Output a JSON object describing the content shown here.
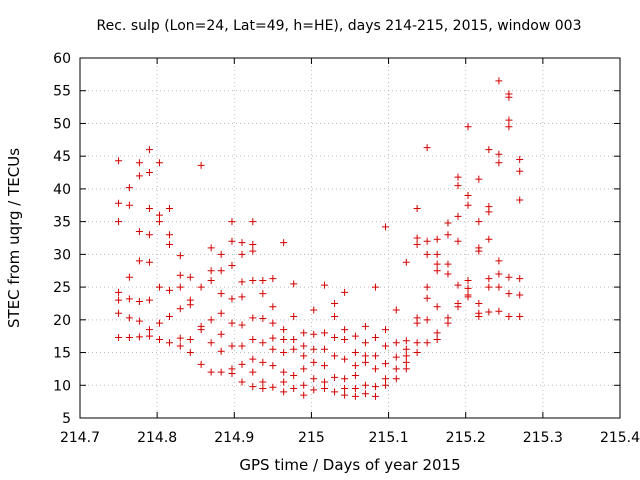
{
  "chart_data": {
    "type": "scatter",
    "title": "Rec. sulp (Lon=24, Lat=49, h=HE), days 214-215, 2015, window 003",
    "xlabel": "GPS time / Days of year 2015",
    "ylabel": "STEC from uqrg / TECUs",
    "xlim": [
      214.7,
      215.4
    ],
    "ylim": [
      5,
      60
    ],
    "xticks": [
      214.7,
      214.8,
      214.9,
      215,
      215.1,
      215.2,
      215.3,
      215.4
    ],
    "xtick_labels": [
      "214.7",
      "214.8",
      "214.9",
      "215",
      "215.1",
      "215.2",
      "215.3",
      "215.4"
    ],
    "yticks": [
      5,
      10,
      15,
      20,
      25,
      30,
      35,
      40,
      45,
      50,
      55,
      60
    ],
    "ytick_labels": [
      "5",
      "10",
      "15",
      "20",
      "25",
      "30",
      "35",
      "40",
      "45",
      "50",
      "55",
      "60"
    ],
    "grid": true,
    "marker_color": "#d40000",
    "series": [
      {
        "points": [
          [
            214.75,
            44.3
          ],
          [
            214.75,
            37.8
          ],
          [
            214.75,
            35
          ],
          [
            214.75,
            24.2
          ],
          [
            214.75,
            23
          ],
          [
            214.75,
            21
          ],
          [
            214.75,
            17.3
          ],
          [
            214.764,
            40.2
          ],
          [
            214.764,
            37.5
          ],
          [
            214.764,
            26.5
          ],
          [
            214.764,
            23.2
          ],
          [
            214.764,
            20.3
          ],
          [
            214.764,
            17.3
          ],
          [
            214.777,
            44
          ],
          [
            214.777,
            42
          ],
          [
            214.777,
            33.5
          ],
          [
            214.777,
            29
          ],
          [
            214.777,
            22.8
          ],
          [
            214.777,
            19.8
          ],
          [
            214.777,
            17.4
          ],
          [
            214.79,
            46
          ],
          [
            214.79,
            42.5
          ],
          [
            214.79,
            37
          ],
          [
            214.79,
            33
          ],
          [
            214.79,
            28.8
          ],
          [
            214.79,
            23
          ],
          [
            214.79,
            18.5
          ],
          [
            214.79,
            17.5
          ],
          [
            214.803,
            44
          ],
          [
            214.803,
            36
          ],
          [
            214.803,
            35
          ],
          [
            214.803,
            25
          ],
          [
            214.803,
            19.5
          ],
          [
            214.803,
            17
          ],
          [
            214.816,
            37
          ],
          [
            214.816,
            33
          ],
          [
            214.816,
            31.5
          ],
          [
            214.816,
            24.5
          ],
          [
            214.816,
            20.5
          ],
          [
            214.816,
            16.5
          ],
          [
            214.83,
            29.8
          ],
          [
            214.83,
            26.8
          ],
          [
            214.83,
            25
          ],
          [
            214.83,
            21.7
          ],
          [
            214.83,
            17.2
          ],
          [
            214.83,
            16
          ],
          [
            214.843,
            26.5
          ],
          [
            214.843,
            23
          ],
          [
            214.843,
            22.3
          ],
          [
            214.843,
            17
          ],
          [
            214.843,
            15
          ],
          [
            214.857,
            43.6
          ],
          [
            214.857,
            25
          ],
          [
            214.857,
            19
          ],
          [
            214.857,
            18.5
          ],
          [
            214.857,
            13.2
          ],
          [
            214.87,
            31
          ],
          [
            214.87,
            27.5
          ],
          [
            214.87,
            26
          ],
          [
            214.87,
            20
          ],
          [
            214.87,
            16.5
          ],
          [
            214.87,
            12
          ],
          [
            214.883,
            30
          ],
          [
            214.883,
            27.5
          ],
          [
            214.883,
            24
          ],
          [
            214.883,
            21
          ],
          [
            214.883,
            17.8
          ],
          [
            214.883,
            15.2
          ],
          [
            214.883,
            12
          ],
          [
            214.897,
            35
          ],
          [
            214.897,
            32
          ],
          [
            214.897,
            28.3
          ],
          [
            214.897,
            23.2
          ],
          [
            214.897,
            19.5
          ],
          [
            214.897,
            16
          ],
          [
            214.897,
            12.5
          ],
          [
            214.897,
            11.8
          ],
          [
            214.91,
            31.8
          ],
          [
            214.91,
            30
          ],
          [
            214.91,
            25.8
          ],
          [
            214.91,
            23.5
          ],
          [
            214.91,
            19.2
          ],
          [
            214.91,
            16
          ],
          [
            214.91,
            13.2
          ],
          [
            214.91,
            10.5
          ],
          [
            214.924,
            35
          ],
          [
            214.924,
            31.5
          ],
          [
            214.924,
            30.5
          ],
          [
            214.924,
            26
          ],
          [
            214.924,
            20.3
          ],
          [
            214.924,
            17
          ],
          [
            214.924,
            14
          ],
          [
            214.924,
            12
          ],
          [
            214.924,
            9.8
          ],
          [
            214.937,
            26
          ],
          [
            214.937,
            24
          ],
          [
            214.937,
            20.2
          ],
          [
            214.937,
            16.5
          ],
          [
            214.937,
            13.5
          ],
          [
            214.937,
            10.5
          ],
          [
            214.937,
            9.5
          ],
          [
            214.95,
            26.3
          ],
          [
            214.95,
            22
          ],
          [
            214.95,
            19.5
          ],
          [
            214.95,
            17.2
          ],
          [
            214.95,
            15.5
          ],
          [
            214.95,
            13
          ],
          [
            214.95,
            9.7
          ],
          [
            214.964,
            31.8
          ],
          [
            214.964,
            18.5
          ],
          [
            214.964,
            17
          ],
          [
            214.964,
            15
          ],
          [
            214.964,
            12
          ],
          [
            214.964,
            10.5
          ],
          [
            214.964,
            9
          ],
          [
            214.977,
            25.5
          ],
          [
            214.977,
            20.5
          ],
          [
            214.977,
            17
          ],
          [
            214.977,
            15.5
          ],
          [
            214.977,
            11.5
          ],
          [
            214.977,
            9.5
          ],
          [
            214.99,
            18
          ],
          [
            214.99,
            16
          ],
          [
            214.99,
            14.5
          ],
          [
            214.99,
            12.5
          ],
          [
            214.99,
            10
          ],
          [
            214.99,
            8.5
          ],
          [
            215.003,
            21.5
          ],
          [
            215.003,
            17.8
          ],
          [
            215.003,
            15.5
          ],
          [
            215.003,
            13.5
          ],
          [
            215.003,
            11
          ],
          [
            215.003,
            9.3
          ],
          [
            215.017,
            25.3
          ],
          [
            215.017,
            18
          ],
          [
            215.017,
            15.5
          ],
          [
            215.017,
            13
          ],
          [
            215.017,
            10.5
          ],
          [
            215.017,
            9.5
          ],
          [
            215.03,
            22.5
          ],
          [
            215.03,
            20.5
          ],
          [
            215.03,
            17.3
          ],
          [
            215.03,
            14.5
          ],
          [
            215.03,
            11.2
          ],
          [
            215.03,
            9
          ],
          [
            215.043,
            24.2
          ],
          [
            215.043,
            18.5
          ],
          [
            215.043,
            17
          ],
          [
            215.043,
            14
          ],
          [
            215.043,
            11
          ],
          [
            215.043,
            9.5
          ],
          [
            215.043,
            8.5
          ],
          [
            215.057,
            17.5
          ],
          [
            215.057,
            15
          ],
          [
            215.057,
            13
          ],
          [
            215.057,
            11.5
          ],
          [
            215.057,
            9.5
          ],
          [
            215.057,
            8.3
          ],
          [
            215.07,
            19
          ],
          [
            215.07,
            16.5
          ],
          [
            215.07,
            14.5
          ],
          [
            215.07,
            13.5
          ],
          [
            215.07,
            10
          ],
          [
            215.07,
            8.7
          ],
          [
            215.083,
            25
          ],
          [
            215.083,
            17.3
          ],
          [
            215.083,
            14.5
          ],
          [
            215.083,
            12.5
          ],
          [
            215.083,
            9.8
          ],
          [
            215.083,
            8.3
          ],
          [
            215.096,
            34.2
          ],
          [
            215.096,
            18.5
          ],
          [
            215.096,
            16
          ],
          [
            215.096,
            13.3
          ],
          [
            215.096,
            11
          ],
          [
            215.096,
            10
          ],
          [
            215.11,
            21.5
          ],
          [
            215.11,
            16.5
          ],
          [
            215.11,
            14.3
          ],
          [
            215.11,
            12.5
          ],
          [
            215.11,
            11
          ],
          [
            215.123,
            28.8
          ],
          [
            215.123,
            16.8
          ],
          [
            215.123,
            15.5
          ],
          [
            215.123,
            14.5
          ],
          [
            215.123,
            13.5
          ],
          [
            215.123,
            12.5
          ],
          [
            215.137,
            37
          ],
          [
            215.137,
            32.5
          ],
          [
            215.137,
            31.5
          ],
          [
            215.137,
            20.3
          ],
          [
            215.137,
            19.5
          ],
          [
            215.137,
            16.5
          ],
          [
            215.137,
            15
          ],
          [
            215.15,
            46.3
          ],
          [
            215.15,
            32
          ],
          [
            215.15,
            30
          ],
          [
            215.15,
            25
          ],
          [
            215.15,
            23.3
          ],
          [
            215.15,
            20
          ],
          [
            215.15,
            16.5
          ],
          [
            215.163,
            32.3
          ],
          [
            215.163,
            30
          ],
          [
            215.163,
            28.5
          ],
          [
            215.163,
            27.5
          ],
          [
            215.163,
            22
          ],
          [
            215.163,
            18
          ],
          [
            215.163,
            17
          ],
          [
            215.177,
            34.8
          ],
          [
            215.177,
            33
          ],
          [
            215.177,
            28.5
          ],
          [
            215.177,
            27
          ],
          [
            215.177,
            20.3
          ],
          [
            215.177,
            19.5
          ],
          [
            215.19,
            41.8
          ],
          [
            215.19,
            40.5
          ],
          [
            215.19,
            35.8
          ],
          [
            215.19,
            32
          ],
          [
            215.19,
            25.3
          ],
          [
            215.19,
            22.5
          ],
          [
            215.19,
            22
          ],
          [
            215.203,
            49.5
          ],
          [
            215.203,
            39
          ],
          [
            215.203,
            37.5
          ],
          [
            215.203,
            26
          ],
          [
            215.203,
            24.8
          ],
          [
            215.203,
            23.8
          ],
          [
            215.203,
            23.5
          ],
          [
            215.217,
            41.5
          ],
          [
            215.217,
            35
          ],
          [
            215.217,
            31
          ],
          [
            215.217,
            30.5
          ],
          [
            215.217,
            22.5
          ],
          [
            215.217,
            21
          ],
          [
            215.217,
            20.5
          ],
          [
            215.23,
            46
          ],
          [
            215.23,
            37.3
          ],
          [
            215.23,
            36.5
          ],
          [
            215.23,
            32.3
          ],
          [
            215.23,
            26.3
          ],
          [
            215.23,
            25
          ],
          [
            215.23,
            21.2
          ],
          [
            215.243,
            56.5
          ],
          [
            215.243,
            45.3
          ],
          [
            215.243,
            44
          ],
          [
            215.243,
            29
          ],
          [
            215.243,
            27
          ],
          [
            215.243,
            25
          ],
          [
            215.243,
            21.3
          ],
          [
            215.256,
            54.5
          ],
          [
            215.256,
            54
          ],
          [
            215.256,
            50.5
          ],
          [
            215.256,
            49.5
          ],
          [
            215.256,
            26.5
          ],
          [
            215.256,
            24
          ],
          [
            215.256,
            20.5
          ],
          [
            215.27,
            44.5
          ],
          [
            215.27,
            42.7
          ],
          [
            215.27,
            38.3
          ],
          [
            215.27,
            26.3
          ],
          [
            215.27,
            23.8
          ],
          [
            215.27,
            20.5
          ]
        ]
      }
    ]
  }
}
